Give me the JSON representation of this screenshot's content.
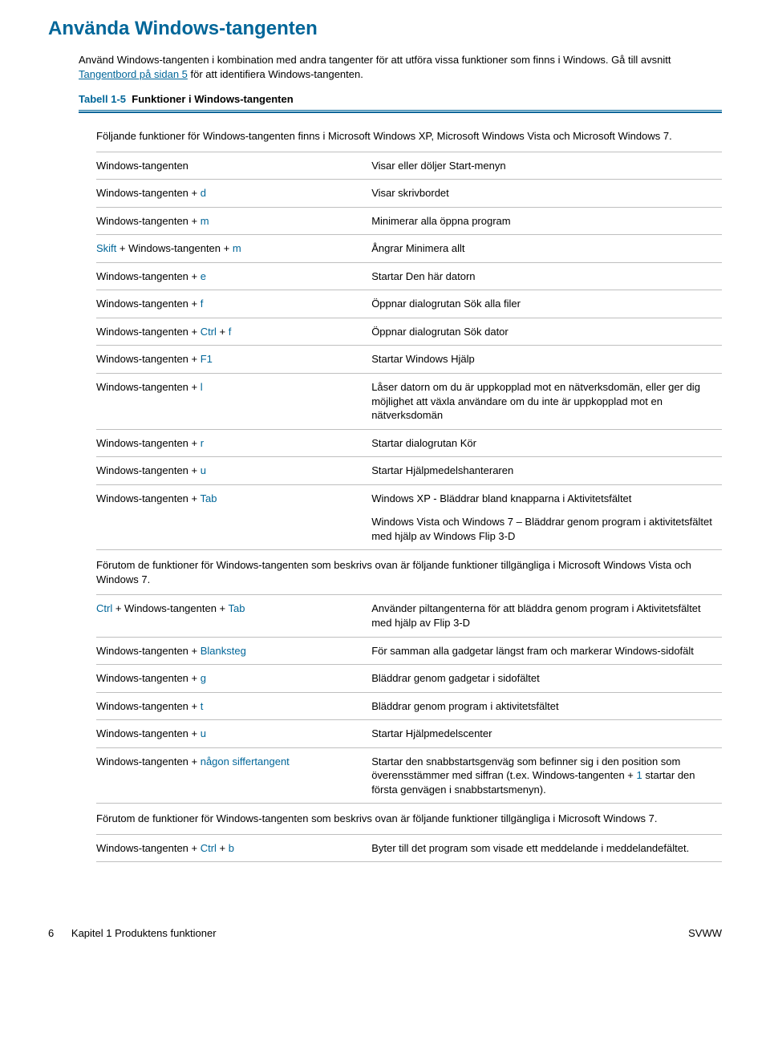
{
  "colors": {
    "accent": "#006699",
    "text": "#000000",
    "rule": "#bfbfbf",
    "background": "#ffffff"
  },
  "heading": "Använda Windows-tangenten",
  "intro": {
    "part1": "Använd Windows-tangenten i kombination med andra tangenter för att utföra vissa funktioner som finns i Windows. Gå till avsnitt ",
    "link": "Tangentbord på sidan 5",
    "part2": " för att identifiera Windows-tangenten."
  },
  "table": {
    "label": "Tabell 1-5",
    "name": "Funktioner i Windows-tangenten",
    "caption1": "Följande funktioner för Windows-tangenten finns i Microsoft Windows XP, Microsoft Windows Vista och Microsoft Windows 7.",
    "rows1": [
      {
        "k": [
          {
            "t": "Windows-tangenten",
            "c": false
          }
        ],
        "d": "Visar eller döljer Start-menyn"
      },
      {
        "k": [
          {
            "t": "Windows-tangenten + ",
            "c": false
          },
          {
            "t": "d",
            "c": true
          }
        ],
        "d": "Visar skrivbordet"
      },
      {
        "k": [
          {
            "t": "Windows-tangenten + ",
            "c": false
          },
          {
            "t": "m",
            "c": true
          }
        ],
        "d": "Minimerar alla öppna program"
      },
      {
        "k": [
          {
            "t": "Skift",
            "c": true
          },
          {
            "t": " + Windows-tangenten + ",
            "c": false
          },
          {
            "t": "m",
            "c": true
          }
        ],
        "d": "Ångrar Minimera allt"
      },
      {
        "k": [
          {
            "t": "Windows-tangenten + ",
            "c": false
          },
          {
            "t": "e",
            "c": true
          }
        ],
        "d": "Startar Den här datorn"
      },
      {
        "k": [
          {
            "t": "Windows-tangenten + ",
            "c": false
          },
          {
            "t": "f",
            "c": true
          }
        ],
        "d": "Öppnar dialogrutan Sök alla filer"
      },
      {
        "k": [
          {
            "t": "Windows-tangenten + ",
            "c": false
          },
          {
            "t": "Ctrl",
            "c": true
          },
          {
            "t": " + ",
            "c": false
          },
          {
            "t": "f",
            "c": true
          }
        ],
        "d": "Öppnar dialogrutan Sök dator"
      },
      {
        "k": [
          {
            "t": "Windows-tangenten + ",
            "c": false
          },
          {
            "t": "F1",
            "c": true
          }
        ],
        "d": "Startar Windows Hjälp"
      },
      {
        "k": [
          {
            "t": "Windows-tangenten + ",
            "c": false
          },
          {
            "t": "l",
            "c": true
          }
        ],
        "d": "Låser datorn om du är uppkopplad mot en nätverksdomän, eller ger dig möjlighet att växla användare om du inte är uppkopplad mot en nätverksdomän"
      },
      {
        "k": [
          {
            "t": "Windows-tangenten + ",
            "c": false
          },
          {
            "t": "r",
            "c": true
          }
        ],
        "d": "Startar dialogrutan Kör"
      },
      {
        "k": [
          {
            "t": "Windows-tangenten + ",
            "c": false
          },
          {
            "t": "u",
            "c": true
          }
        ],
        "d": "Startar Hjälpmedelshanteraren"
      }
    ],
    "row_tab": {
      "k": [
        {
          "t": "Windows-tangenten + ",
          "c": false
        },
        {
          "t": "Tab",
          "c": true
        }
      ],
      "d1": "Windows XP - Bläddrar bland knapparna i Aktivitetsfältet",
      "d2": "Windows Vista och Windows 7 – Bläddrar genom program i aktivitetsfältet med hjälp av Windows Flip 3-D"
    },
    "caption2": "Förutom de funktioner för Windows-tangenten som beskrivs ovan är följande funktioner tillgängliga i Microsoft Windows Vista och Windows 7.",
    "rows2": [
      {
        "k": [
          {
            "t": "Ctrl",
            "c": true
          },
          {
            "t": " + Windows-tangenten + ",
            "c": false
          },
          {
            "t": "Tab",
            "c": true
          }
        ],
        "d": "Använder piltangenterna för att bläddra genom program i Aktivitetsfältet med hjälp av Flip 3-D"
      },
      {
        "k": [
          {
            "t": "Windows-tangenten + ",
            "c": false
          },
          {
            "t": "Blanksteg",
            "c": true
          }
        ],
        "d": "För samman alla gadgetar längst fram och markerar Windows-sidofält"
      },
      {
        "k": [
          {
            "t": "Windows-tangenten + ",
            "c": false
          },
          {
            "t": "g",
            "c": true
          }
        ],
        "d": "Bläddrar genom gadgetar i sidofältet"
      },
      {
        "k": [
          {
            "t": "Windows-tangenten + ",
            "c": false
          },
          {
            "t": "t",
            "c": true
          }
        ],
        "d": "Bläddrar genom program i aktivitetsfältet"
      },
      {
        "k": [
          {
            "t": "Windows-tangenten + ",
            "c": false
          },
          {
            "t": "u",
            "c": true
          }
        ],
        "d": "Startar Hjälpmedelscenter"
      },
      {
        "k": [
          {
            "t": "Windows-tangenten + ",
            "c": false
          },
          {
            "t": "någon siffertangent",
            "c": true
          }
        ],
        "d": "Startar den snabbstartsgenväg som befinner sig i den position som överensstämmer med siffran (t.ex. Windows-tangenten + 1 startar den första genvägen i snabbstartsmenyn).",
        "d_colored_digit": "1"
      }
    ],
    "caption3": "Förutom de funktioner för Windows-tangenten som beskrivs ovan är följande funktioner tillgängliga i Microsoft Windows 7.",
    "rows3": [
      {
        "k": [
          {
            "t": "Windows-tangenten + ",
            "c": false
          },
          {
            "t": "Ctrl",
            "c": true
          },
          {
            "t": " + ",
            "c": false
          },
          {
            "t": "b",
            "c": true
          }
        ],
        "d": "Byter till det program som visade ett meddelande i meddelandefältet."
      }
    ]
  },
  "footer": {
    "page": "6",
    "chapter": "Kapitel 1   Produktens funktioner",
    "right": "SVWW"
  }
}
